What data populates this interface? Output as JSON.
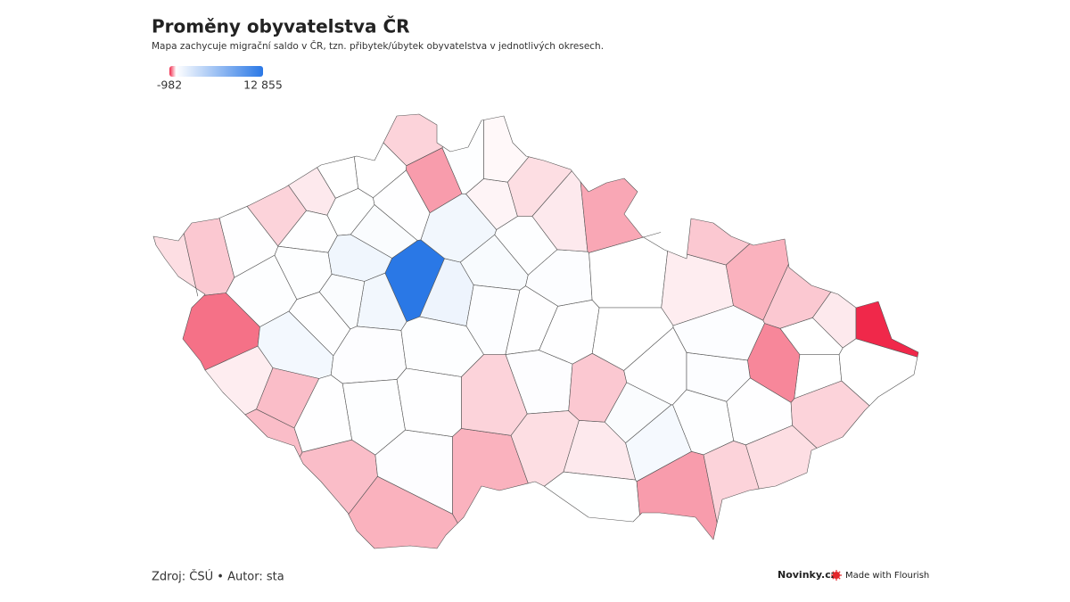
{
  "chart_data": {
    "type": "choropleth",
    "title": "Proměny obyvatelstva ČR",
    "subtitle": "Mapa zachycuje migrační saldo v ČR, tzn. přibytek/úbytek obyvatelstva v jednotlivých okresech.",
    "colorscale": {
      "range": [
        -982,
        12855
      ],
      "ticks": [
        -982,
        {
          "value": 12855,
          "label": "12 855"
        }
      ],
      "colors": [
        "#f0284a",
        "#ffffff",
        "#2a78e6"
      ]
    },
    "values": [
      -150,
      -250,
      50,
      -200,
      -100,
      30,
      20,
      -200,
      -450,
      100,
      50,
      40,
      50,
      -650,
      -80,
      100,
      700,
      -300,
      80,
      100,
      900,
      300,
      12855,
      800,
      1000,
      800,
      400,
      200,
      300,
      150,
      100,
      50,
      60,
      -300,
      -300,
      -350,
      150,
      100,
      50,
      -350,
      -200,
      150,
      -150,
      -100,
      40,
      -250,
      50,
      200,
      100,
      -50,
      -30,
      -150,
      -100,
      -400,
      30,
      20,
      80,
      600,
      300,
      100,
      -450,
      -200,
      -150,
      80,
      -200,
      20,
      -550,
      200,
      200,
      -80,
      -250,
      -350,
      -250,
      -100,
      -982,
      20,
      30
    ],
    "source": "Zdroj: ČSÚ • Autor: sta",
    "brand": "Novinky.cz",
    "credit": "Made with Flourish"
  }
}
